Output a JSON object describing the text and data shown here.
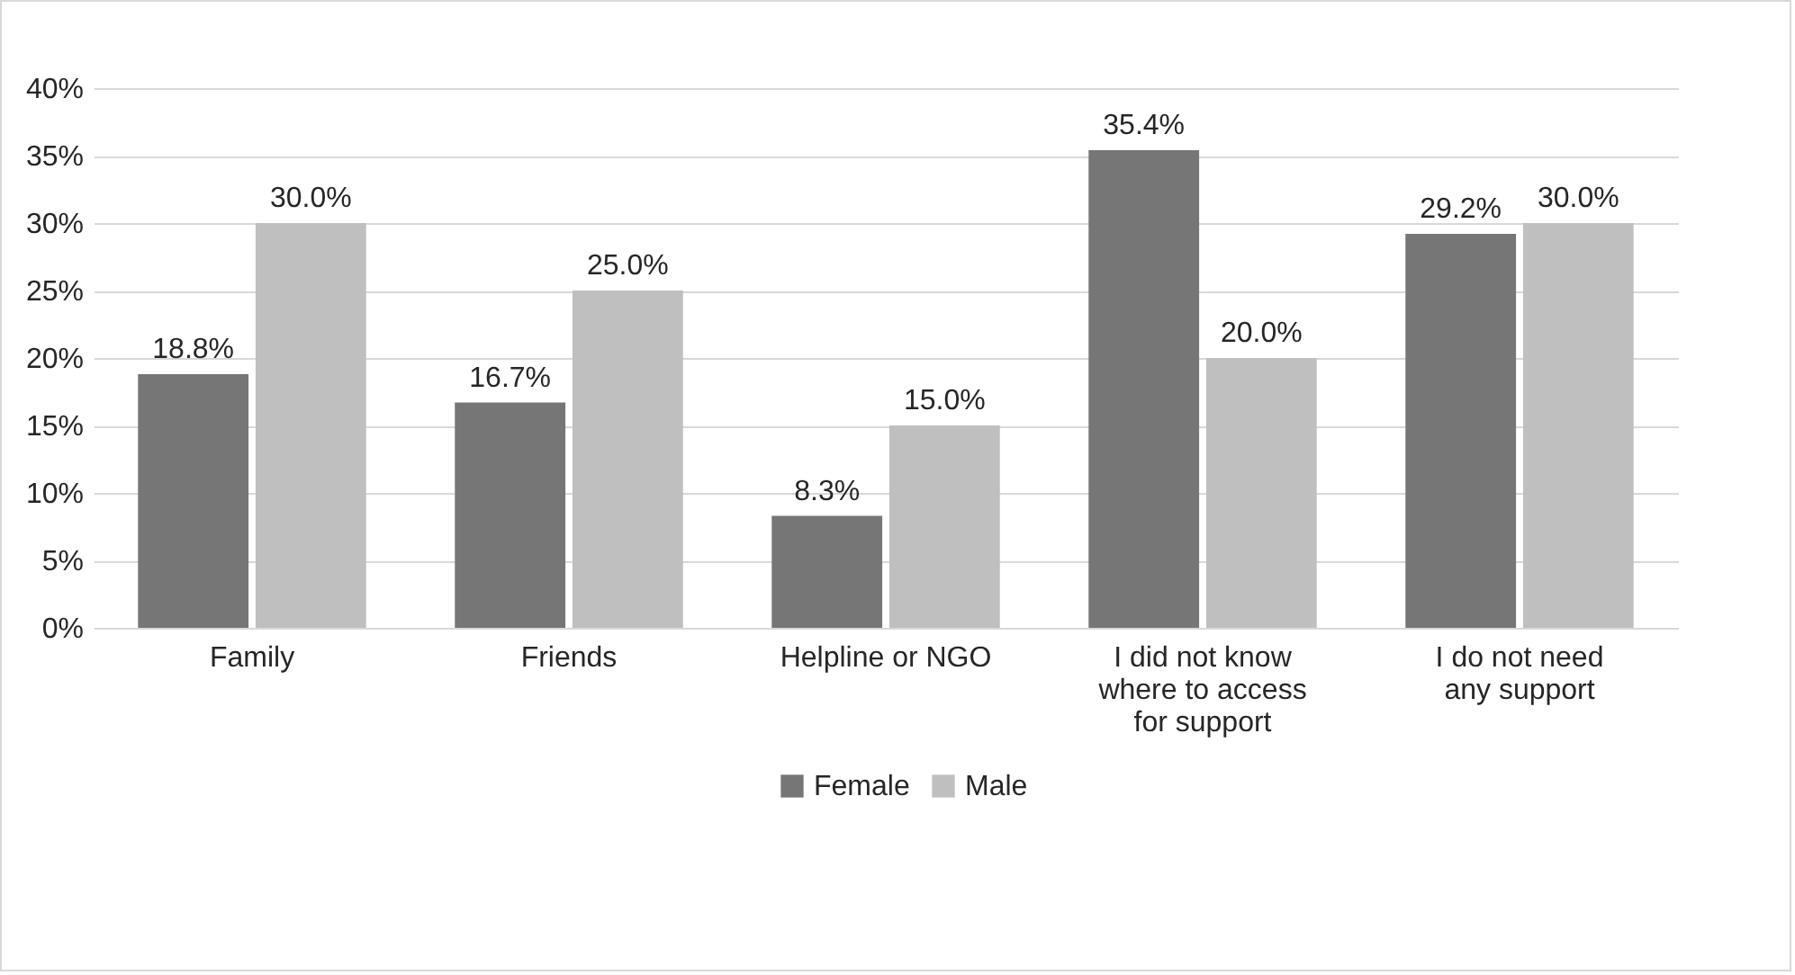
{
  "chart_data": {
    "type": "bar",
    "categories": [
      "Family",
      "Friends",
      "Helpline or NGO",
      "I did not know where to access for support",
      "I do not need any support"
    ],
    "series": [
      {
        "name": "Female",
        "color": "#767676",
        "values": [
          18.8,
          16.7,
          8.3,
          35.4,
          29.2
        ],
        "value_labels": [
          "18.8%",
          "16.7%",
          "8.3%",
          "35.4%",
          "29.2%"
        ]
      },
      {
        "name": "Male",
        "color": "#bfbfbf",
        "values": [
          30.0,
          25.0,
          15.0,
          20.0,
          30.0
        ],
        "value_labels": [
          "30.0%",
          "25.0%",
          "15.0%",
          "20.0%",
          "30.0%"
        ]
      }
    ],
    "ylim": [
      0,
      40
    ],
    "yticks": [
      {
        "value": 0,
        "label": "0%"
      },
      {
        "value": 5,
        "label": "5%"
      },
      {
        "value": 10,
        "label": "10%"
      },
      {
        "value": 15,
        "label": "15%"
      },
      {
        "value": 20,
        "label": "20%"
      },
      {
        "value": 25,
        "label": "25%"
      },
      {
        "value": 30,
        "label": "30%"
      },
      {
        "value": 35,
        "label": "35%"
      },
      {
        "value": 40,
        "label": "40%"
      }
    ],
    "grid": "y",
    "legend": "bottom"
  }
}
